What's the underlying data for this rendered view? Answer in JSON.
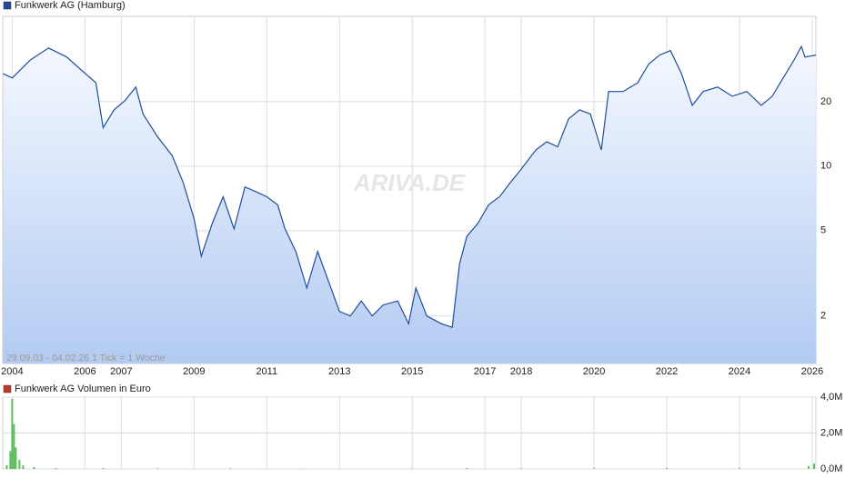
{
  "chart_data": [
    {
      "type": "line",
      "x": [
        2003.75,
        2004.0,
        2004.5,
        2005.0,
        2005.5,
        2006.0,
        2006.3,
        2006.5,
        2006.8,
        2007.1,
        2007.4,
        2007.6,
        2008.0,
        2008.4,
        2008.7,
        2009.0,
        2009.2,
        2009.5,
        2009.8,
        2010.1,
        2010.4,
        2010.7,
        2011.0,
        2011.3,
        2011.5,
        2011.8,
        2012.1,
        2012.4,
        2012.7,
        2013.0,
        2013.3,
        2013.6,
        2013.9,
        2014.2,
        2014.6,
        2014.9,
        2015.1,
        2015.4,
        2015.8,
        2016.1,
        2016.3,
        2016.5,
        2016.8,
        2017.1,
        2017.4,
        2017.7,
        2018.0,
        2018.4,
        2018.7,
        2019.0,
        2019.3,
        2019.6,
        2019.9,
        2020.2,
        2020.4,
        2020.8,
        2021.2,
        2021.5,
        2021.8,
        2022.1,
        2022.4,
        2022.7,
        2023.0,
        2023.4,
        2023.8,
        2024.2,
        2024.6,
        2024.9,
        2025.2,
        2025.5,
        2025.7,
        2025.8,
        2026.1
      ],
      "series": [
        {
          "name": "Funkwerk AG (Hamburg)",
          "color": "#1f4e9c",
          "values": [
            27,
            25.8,
            31.3,
            35.6,
            32.3,
            27.1,
            24.5,
            15.1,
            18.3,
            20.2,
            23.4,
            17.5,
            13.7,
            11.2,
            8.4,
            5.7,
            3.8,
            5.4,
            7.2,
            5.1,
            8.0,
            7.6,
            7.2,
            6.6,
            5.1,
            4.0,
            2.7,
            4.0,
            2.9,
            2.1,
            2.0,
            2.35,
            2.0,
            2.25,
            2.35,
            1.84,
            2.7,
            2.0,
            1.84,
            1.77,
            3.5,
            4.7,
            5.4,
            6.6,
            7.2,
            8.4,
            9.7,
            11.9,
            13.0,
            12.3,
            16.6,
            18.3,
            17.5,
            11.9,
            22.3,
            22.3,
            24.5,
            29.9,
            33.0,
            34.6,
            27.1,
            19.2,
            22.3,
            23.4,
            21.2,
            22.3,
            19.2,
            21.2,
            25.8,
            31.3,
            36.2,
            32.3,
            33.0
          ]
        }
      ],
      "xlim": [
        2003.74,
        2026.1
      ],
      "xticks": [
        2004,
        2006,
        2007,
        2009,
        2011,
        2013,
        2015,
        2017,
        2018,
        2020,
        2022,
        2024,
        2026
      ],
      "ylim": [
        1.2,
        50
      ],
      "yticks": [
        2,
        5,
        10,
        20
      ],
      "log_scale": true,
      "grid": true,
      "annotation": "29.09.03 - 04.02.26   1 Tick = 1 Woche",
      "watermark": "ARIVA.DE"
    },
    {
      "type": "bar",
      "x": [
        2003.85,
        2003.95,
        2004.0,
        2004.05,
        2004.1,
        2004.2,
        2004.3,
        2004.6,
        2005.2,
        2006.5,
        2008.0,
        2010.0,
        2012.0,
        2015.0,
        2016.5,
        2018.0,
        2020.0,
        2022.0,
        2024.0,
        2025.9,
        2026.05
      ],
      "series": [
        {
          "name": "Funkwerk AG Volumen in Euro",
          "color": "#5cbf5c",
          "values": [
            200000,
            1000000,
            3900000,
            2500000,
            1200000,
            500000,
            200000,
            100000,
            50000,
            50000,
            30000,
            30000,
            20000,
            20000,
            50000,
            30000,
            40000,
            50000,
            40000,
            150000,
            300000
          ]
        }
      ],
      "legend_color": "#c0392b",
      "xlim": [
        2003.74,
        2026.1
      ],
      "ylim": [
        0,
        4000000
      ],
      "yticks": [
        {
          "value": 0,
          "label": "0,0M"
        },
        {
          "value": 2000000,
          "label": "2,0M"
        },
        {
          "value": 4000000,
          "label": "4,0M"
        }
      ],
      "grid": true
    }
  ]
}
